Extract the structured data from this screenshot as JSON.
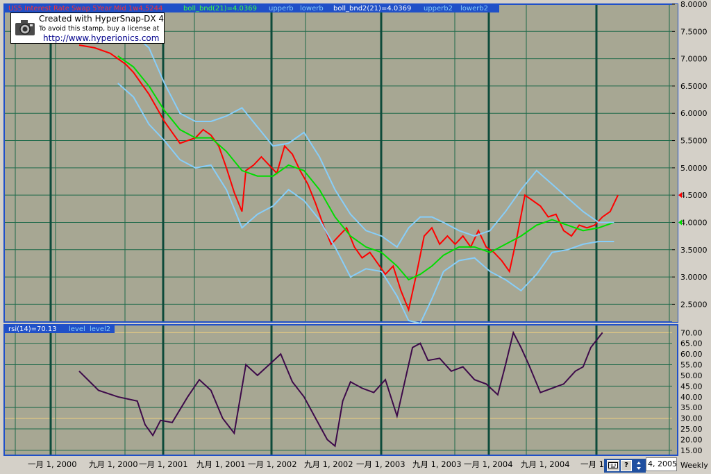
{
  "price_panel": {
    "legend": {
      "main_series": "US5 Interest Rate Swap 5Year Mid 1w4,5244",
      "boll": "boll_bnd(21)=4.0369",
      "upper": "upperb",
      "lower": "lowerb",
      "boll2": "boll_bnd2(21)=4.0369",
      "upper2": "upperb2",
      "lower2": "lowerb2"
    },
    "y_ticks": [
      "8.0000",
      "7.5000",
      "7.0000",
      "6.5000",
      "6.0000",
      "5.5000",
      "5.0000",
      "4.5000",
      "4.0000",
      "3.5000",
      "3.0000",
      "2.5000"
    ],
    "last_markers": [
      {
        "value": "4.5",
        "color": "#ff0000"
      },
      {
        "value": "4.0",
        "color": "#00dd00"
      }
    ]
  },
  "rsi_panel": {
    "legend": {
      "rsi": "rsi(14)=70.13",
      "level": "level",
      "level2": "level2"
    },
    "y_ticks": [
      "70.00",
      "65.00",
      "60.00",
      "55.00",
      "50.00",
      "45.00",
      "40.00",
      "35.00",
      "30.00",
      "25.00",
      "20.00",
      "15.00"
    ]
  },
  "x_axis": {
    "labels": [
      "一月 1, 2000",
      "九月 1, 2000",
      "一月 1, 2001",
      "九月 1, 2001",
      "一月 1, 2002",
      "九月 1, 2002",
      "一月 1, 2003",
      "九月 1, 2003",
      "一月 1, 2004",
      "九月 1, 2004",
      "一月 1"
    ]
  },
  "watermark": {
    "line1": "Created with HyperSnap-DX 4",
    "line2": "To avoid this stamp, buy a license at",
    "line3": "http://www.hyperionics.com",
    "icon": "camera-icon"
  },
  "toolbar": {
    "keyboard_icon": "keyboard-icon",
    "help_label": "?",
    "spin_icon": "spin-arrows-icon"
  },
  "date_field": {
    "value": "4, 2005"
  },
  "period": {
    "label": "Weekly"
  },
  "colors": {
    "plot_bg": "#a7a793",
    "frame": "#2050c8",
    "grid": "#1e6a4a",
    "price": "#ff0000",
    "middle_band": "#00dd00",
    "outer_band": "#87cefa",
    "rsi": "#3d0a4a",
    "level_line": "#f0d080",
    "legend_bg": "#2050c8"
  },
  "chart_data": {
    "type": "line",
    "x_unit": "weeks since start of visible range (start ~ mid-1999)",
    "y_range": [
      2.2,
      8.0
    ],
    "series": [
      {
        "name": "US5 Interest Rate Swap 5Year Mid 1w4,5244",
        "color": "#ff0000",
        "points": [
          [
            0,
            7.25
          ],
          [
            8,
            7.2
          ],
          [
            16,
            7.1
          ],
          [
            24,
            6.9
          ],
          [
            28,
            6.75
          ],
          [
            32,
            6.55
          ],
          [
            36,
            6.35
          ],
          [
            40,
            6.1
          ],
          [
            44,
            5.85
          ],
          [
            48,
            5.65
          ],
          [
            52,
            5.45
          ],
          [
            56,
            5.5
          ],
          [
            60,
            5.55
          ],
          [
            64,
            5.7
          ],
          [
            68,
            5.6
          ],
          [
            72,
            5.4
          ],
          [
            76,
            5.0
          ],
          [
            80,
            4.55
          ],
          [
            84,
            4.2
          ],
          [
            86,
            4.95
          ],
          [
            90,
            5.05
          ],
          [
            94,
            5.2
          ],
          [
            98,
            5.05
          ],
          [
            102,
            4.9
          ],
          [
            106,
            5.4
          ],
          [
            110,
            5.25
          ],
          [
            114,
            4.95
          ],
          [
            118,
            4.7
          ],
          [
            122,
            4.35
          ],
          [
            126,
            3.95
          ],
          [
            130,
            3.6
          ],
          [
            134,
            3.75
          ],
          [
            138,
            3.9
          ],
          [
            142,
            3.55
          ],
          [
            146,
            3.35
          ],
          [
            150,
            3.45
          ],
          [
            154,
            3.25
          ],
          [
            158,
            3.05
          ],
          [
            162,
            3.2
          ],
          [
            166,
            2.75
          ],
          [
            170,
            2.4
          ],
          [
            174,
            3.05
          ],
          [
            178,
            3.75
          ],
          [
            182,
            3.9
          ],
          [
            186,
            3.6
          ],
          [
            190,
            3.75
          ],
          [
            194,
            3.6
          ],
          [
            198,
            3.75
          ],
          [
            202,
            3.55
          ],
          [
            206,
            3.85
          ],
          [
            210,
            3.55
          ],
          [
            214,
            3.45
          ],
          [
            218,
            3.3
          ],
          [
            222,
            3.1
          ],
          [
            226,
            3.75
          ],
          [
            230,
            4.5
          ],
          [
            234,
            4.4
          ],
          [
            238,
            4.3
          ],
          [
            242,
            4.1
          ],
          [
            246,
            4.15
          ],
          [
            250,
            3.85
          ],
          [
            254,
            3.75
          ],
          [
            258,
            3.95
          ],
          [
            262,
            3.9
          ],
          [
            266,
            3.95
          ],
          [
            270,
            4.1
          ],
          [
            274,
            4.2
          ],
          [
            278,
            4.5
          ]
        ]
      },
      {
        "name": "boll_bnd(21)",
        "color": "#00dd00",
        "points": [
          [
            20,
            7.05
          ],
          [
            28,
            6.85
          ],
          [
            36,
            6.5
          ],
          [
            44,
            6.05
          ],
          [
            52,
            5.7
          ],
          [
            60,
            5.55
          ],
          [
            68,
            5.55
          ],
          [
            76,
            5.3
          ],
          [
            84,
            4.95
          ],
          [
            92,
            4.85
          ],
          [
            100,
            4.85
          ],
          [
            108,
            5.05
          ],
          [
            116,
            4.95
          ],
          [
            124,
            4.6
          ],
          [
            132,
            4.1
          ],
          [
            140,
            3.75
          ],
          [
            148,
            3.55
          ],
          [
            156,
            3.45
          ],
          [
            164,
            3.2
          ],
          [
            170,
            2.95
          ],
          [
            176,
            3.05
          ],
          [
            182,
            3.2
          ],
          [
            188,
            3.4
          ],
          [
            196,
            3.55
          ],
          [
            204,
            3.55
          ],
          [
            212,
            3.45
          ],
          [
            220,
            3.6
          ],
          [
            228,
            3.75
          ],
          [
            236,
            3.95
          ],
          [
            244,
            4.05
          ],
          [
            252,
            3.95
          ],
          [
            260,
            3.85
          ],
          [
            268,
            3.9
          ],
          [
            276,
            4.0
          ]
        ]
      },
      {
        "name": "upperb",
        "color": "#87cefa",
        "points": [
          [
            20,
            7.55
          ],
          [
            28,
            7.45
          ],
          [
            36,
            7.2
          ],
          [
            44,
            6.55
          ],
          [
            52,
            6.0
          ],
          [
            60,
            5.85
          ],
          [
            68,
            5.85
          ],
          [
            76,
            5.95
          ],
          [
            84,
            6.1
          ],
          [
            92,
            5.75
          ],
          [
            100,
            5.4
          ],
          [
            108,
            5.45
          ],
          [
            116,
            5.65
          ],
          [
            124,
            5.2
          ],
          [
            132,
            4.6
          ],
          [
            140,
            4.15
          ],
          [
            148,
            3.85
          ],
          [
            156,
            3.75
          ],
          [
            164,
            3.55
          ],
          [
            170,
            3.9
          ],
          [
            176,
            4.1
          ],
          [
            182,
            4.1
          ],
          [
            188,
            4.0
          ],
          [
            196,
            3.85
          ],
          [
            204,
            3.75
          ],
          [
            212,
            3.85
          ],
          [
            220,
            4.2
          ],
          [
            228,
            4.6
          ],
          [
            236,
            4.95
          ],
          [
            244,
            4.7
          ],
          [
            252,
            4.45
          ],
          [
            260,
            4.2
          ],
          [
            268,
            4.0
          ],
          [
            276,
            4.0
          ]
        ]
      },
      {
        "name": "lowerb",
        "color": "#87cefa",
        "points": [
          [
            20,
            6.55
          ],
          [
            28,
            6.3
          ],
          [
            36,
            5.8
          ],
          [
            44,
            5.5
          ],
          [
            52,
            5.15
          ],
          [
            60,
            5.0
          ],
          [
            68,
            5.05
          ],
          [
            76,
            4.6
          ],
          [
            84,
            3.9
          ],
          [
            92,
            4.15
          ],
          [
            100,
            4.3
          ],
          [
            108,
            4.6
          ],
          [
            116,
            4.4
          ],
          [
            124,
            4.05
          ],
          [
            132,
            3.55
          ],
          [
            140,
            3.0
          ],
          [
            148,
            3.15
          ],
          [
            156,
            3.1
          ],
          [
            164,
            2.65
          ],
          [
            170,
            2.2
          ],
          [
            176,
            2.15
          ],
          [
            182,
            2.6
          ],
          [
            188,
            3.1
          ],
          [
            196,
            3.3
          ],
          [
            204,
            3.35
          ],
          [
            212,
            3.1
          ],
          [
            220,
            2.95
          ],
          [
            228,
            2.75
          ],
          [
            236,
            3.05
          ],
          [
            244,
            3.45
          ],
          [
            252,
            3.5
          ],
          [
            260,
            3.6
          ],
          [
            268,
            3.65
          ],
          [
            276,
            3.65
          ]
        ]
      }
    ],
    "rsi": {
      "name": "rsi(14)",
      "color": "#3d0a4a",
      "y_range": [
        13,
        73
      ],
      "levels": [
        70,
        30
      ],
      "points": [
        [
          0,
          52
        ],
        [
          10,
          43
        ],
        [
          20,
          40
        ],
        [
          30,
          38
        ],
        [
          34,
          27
        ],
        [
          38,
          22
        ],
        [
          42,
          29
        ],
        [
          48,
          28
        ],
        [
          56,
          40
        ],
        [
          62,
          48
        ],
        [
          68,
          43
        ],
        [
          74,
          30
        ],
        [
          80,
          23
        ],
        [
          86,
          55
        ],
        [
          92,
          50
        ],
        [
          98,
          55
        ],
        [
          104,
          60
        ],
        [
          110,
          47
        ],
        [
          116,
          40
        ],
        [
          122,
          30
        ],
        [
          128,
          20
        ],
        [
          132,
          17
        ],
        [
          136,
          38
        ],
        [
          140,
          47
        ],
        [
          146,
          44
        ],
        [
          152,
          42
        ],
        [
          158,
          48
        ],
        [
          164,
          31
        ],
        [
          168,
          47
        ],
        [
          172,
          63
        ],
        [
          176,
          65
        ],
        [
          180,
          57
        ],
        [
          186,
          58
        ],
        [
          192,
          52
        ],
        [
          198,
          54
        ],
        [
          204,
          48
        ],
        [
          210,
          46
        ],
        [
          216,
          41
        ],
        [
          220,
          55
        ],
        [
          224,
          70
        ],
        [
          228,
          63
        ],
        [
          232,
          55
        ],
        [
          238,
          42
        ],
        [
          244,
          44
        ],
        [
          250,
          46
        ],
        [
          256,
          52
        ],
        [
          260,
          54
        ],
        [
          264,
          63
        ],
        [
          270,
          70
        ]
      ]
    }
  }
}
